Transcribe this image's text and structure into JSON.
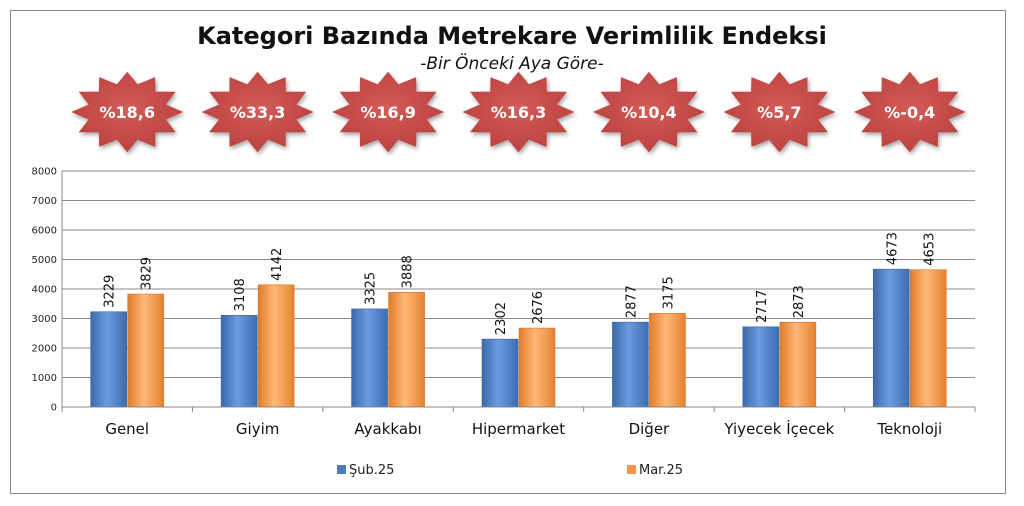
{
  "chart_data": {
    "type": "bar",
    "title": "Kategori Bazında Metrekare Verimlilik Endeksi",
    "subtitle": "-Bir Önceki Aya Göre-",
    "categories": [
      "Genel",
      "Giyim",
      "Ayakkabı",
      "Hipermarket",
      "Diğer",
      "Yiyecek İçecek",
      "Teknoloji"
    ],
    "series": [
      {
        "name": "Şub.25",
        "values": [
          3229,
          3108,
          3325,
          2302,
          2877,
          2717,
          4673
        ],
        "color": "#4a7ebb"
      },
      {
        "name": "Mar.25",
        "values": [
          3829,
          4142,
          3888,
          2676,
          3175,
          2873,
          4653
        ],
        "color": "#f79646"
      }
    ],
    "change_badges": [
      "%18,6",
      "%33,3",
      "%16,9",
      "%16,3",
      "%10,4",
      "%5,7",
      "%-0,4"
    ],
    "badge_color": "#c0504d",
    "ylim": [
      0,
      8000
    ],
    "yticks": [
      0,
      1000,
      2000,
      3000,
      4000,
      5000,
      6000,
      7000,
      8000
    ],
    "grid": true,
    "legend_position": "bottom"
  }
}
